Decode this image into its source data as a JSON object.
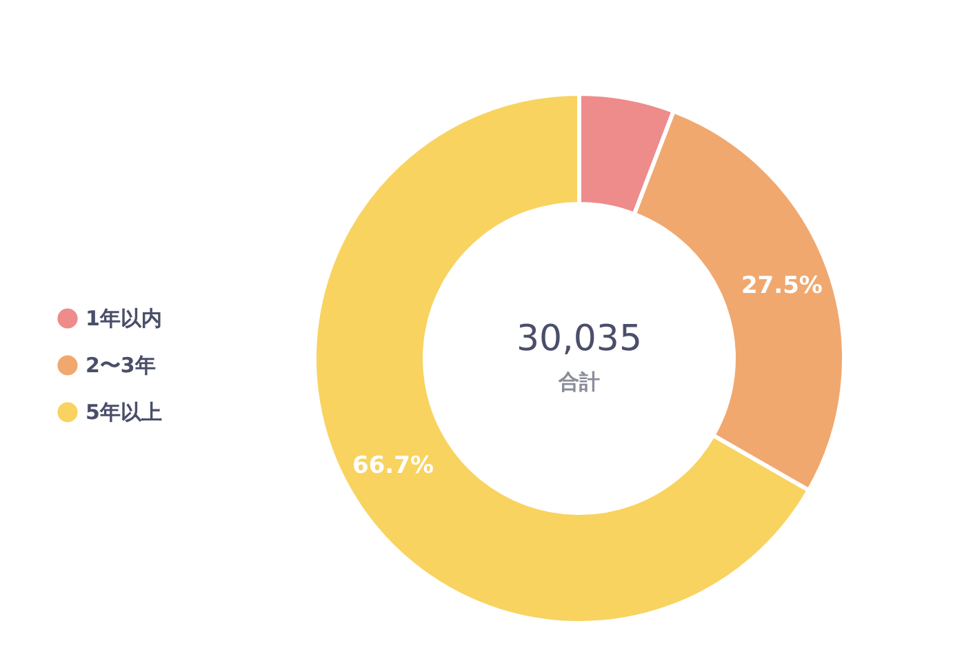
{
  "chart_data": {
    "type": "donut",
    "categories": [
      "1年以内",
      "2〜3年",
      "5年以上"
    ],
    "values": [
      5.8,
      27.5,
      66.7
    ],
    "colors": [
      "#ee8b8b",
      "#f0a86f",
      "#f8d35f"
    ],
    "value_labels": [
      null,
      "27.5%",
      "66.7%"
    ],
    "annotations": [
      "30,035",
      "合計"
    ],
    "legend": "left"
  }
}
